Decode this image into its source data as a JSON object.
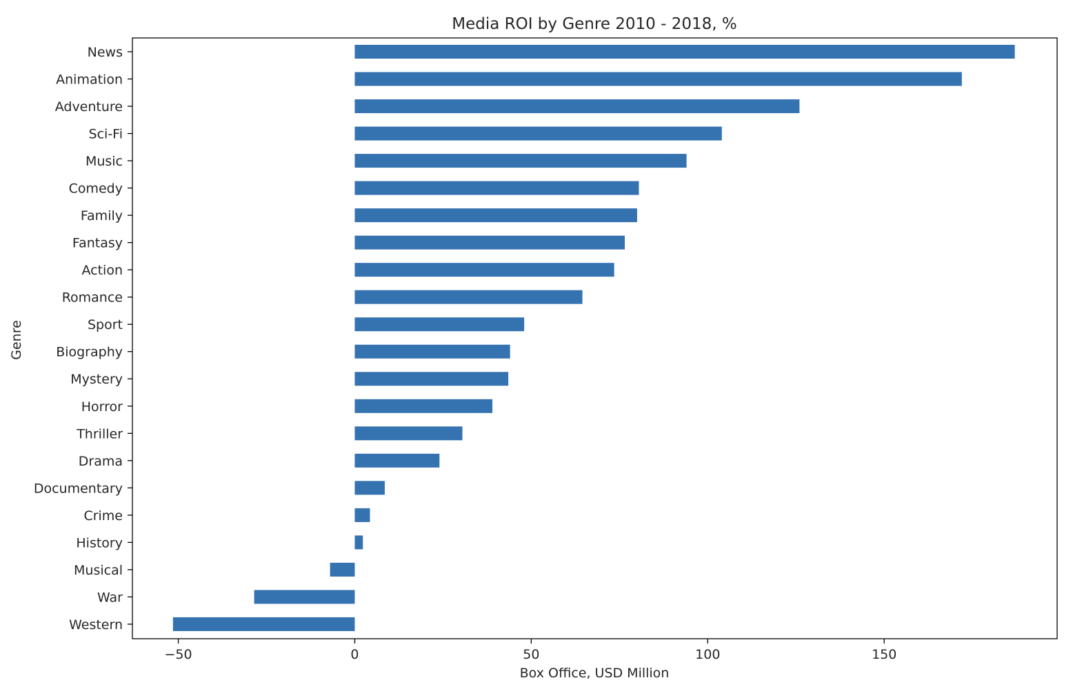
{
  "chart_data": {
    "type": "bar",
    "orientation": "horizontal",
    "title": "Media ROI by Genre 2010 - 2018, %",
    "xlabel": "Box Office, USD Million",
    "ylabel": "Genre",
    "xlim": [
      -63,
      199
    ],
    "xticks": [
      -50,
      0,
      50,
      100,
      150
    ],
    "xtick_labels": [
      "−50",
      "0",
      "50",
      "100",
      "150"
    ],
    "grid": false,
    "legend": "none",
    "bar_color": "#3572b0",
    "categories": [
      "News",
      "Animation",
      "Adventure",
      "Sci-Fi",
      "Music",
      "Comedy",
      "Family",
      "Fantasy",
      "Action",
      "Romance",
      "Sport",
      "Biography",
      "Mystery",
      "Horror",
      "Thriller",
      "Drama",
      "Documentary",
      "Crime",
      "History",
      "Musical",
      "War",
      "Western"
    ],
    "values": [
      187,
      172,
      126,
      104,
      94,
      80.5,
      80,
      76.5,
      73.5,
      64.5,
      48,
      44,
      43.5,
      39,
      30.5,
      24,
      8.5,
      4.3,
      2.3,
      -7,
      -28.5,
      -51.5
    ]
  }
}
